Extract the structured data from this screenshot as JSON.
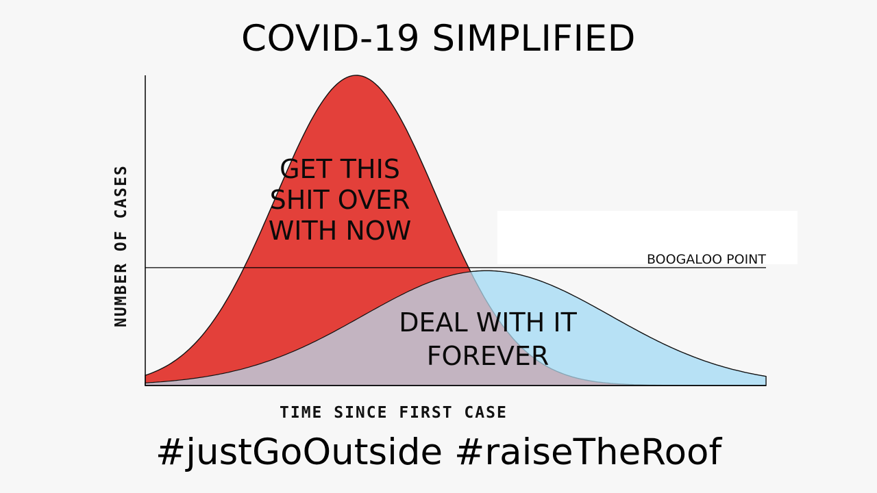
{
  "title": "COVID-19 SIMPLIFIED",
  "footer": "#justGoOutside #raiseTheRoof",
  "chart_data": {
    "type": "area",
    "xlabel": "TIME SINCE FIRST CASE",
    "ylabel": "NUMBER OF CASES",
    "xlim": [
      0,
      1
    ],
    "ylim": [
      0,
      1
    ],
    "grid": false,
    "series": [
      {
        "label_lines": [
          "GET THIS",
          "SHIT OVER",
          "WITH NOW"
        ],
        "color": "#e3403a",
        "peak_x": 0.34,
        "peak_y": 1.0,
        "width": 0.13
      },
      {
        "label_lines": [
          "DEAL WITH IT",
          "FOREVER"
        ],
        "color": "#b7e0f5",
        "peak_x": 0.55,
        "peak_y": 0.37,
        "width": 0.2
      }
    ],
    "threshold": {
      "label": "BOOGALOO POINT",
      "y": 0.38
    }
  }
}
